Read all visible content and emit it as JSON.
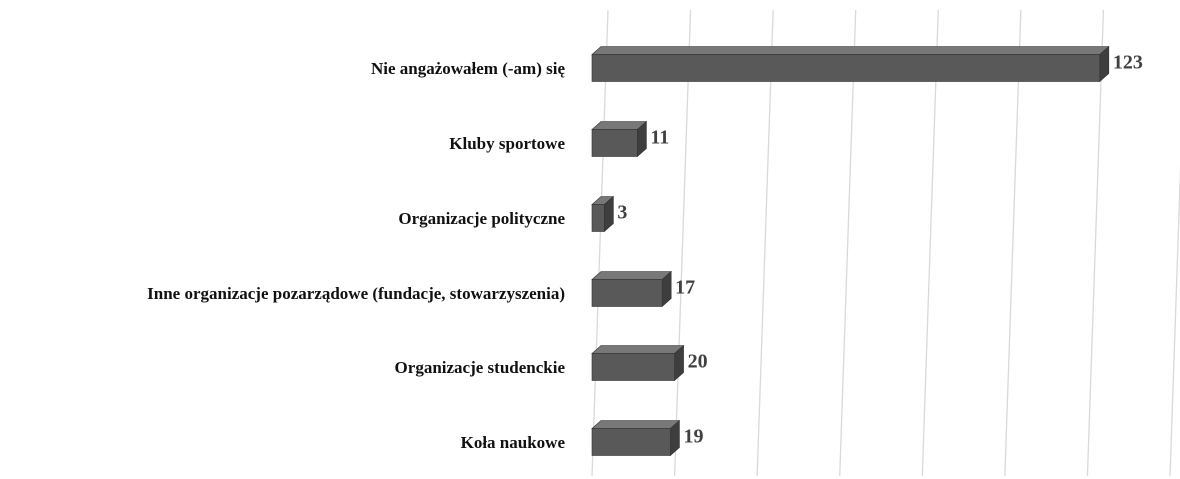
{
  "chart_data": {
    "type": "bar3d_horizontal",
    "categories": [
      "Nie angażowałem (-am) się",
      "Kluby sportowe",
      "Organizacje polityczne",
      "Inne organizacje pozarządowe (fundacje, stowarzyszenia)",
      "Organizacje studenckie",
      "Koła naukowe"
    ],
    "values": [
      123,
      11,
      3,
      17,
      20,
      19
    ],
    "color": "#595959",
    "xlim": [
      0,
      140
    ],
    "xticks": [
      0,
      20,
      40,
      60,
      80,
      100,
      120,
      140
    ],
    "grid": true
  }
}
